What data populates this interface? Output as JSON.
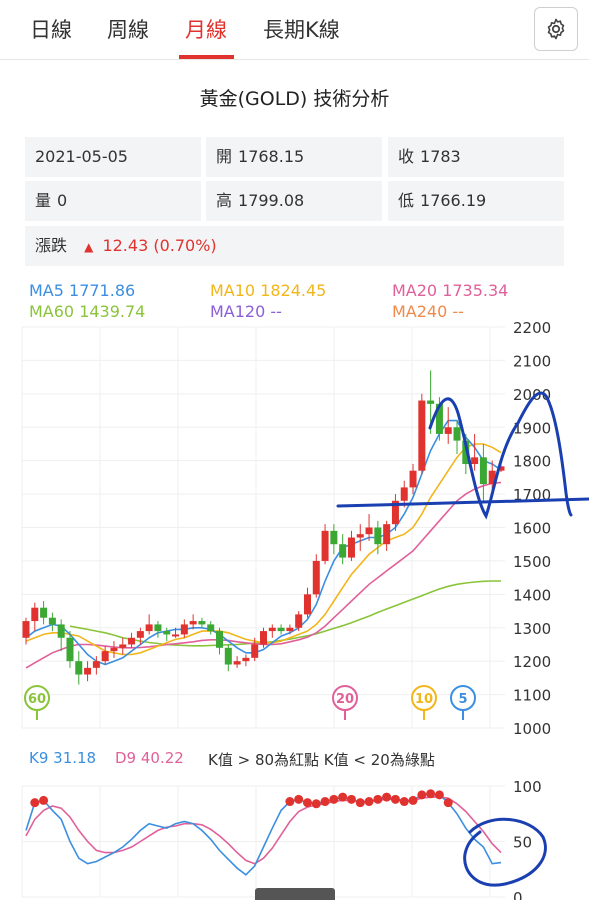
{
  "tabs": [
    "日線",
    "周線",
    "月線",
    "長期K線"
  ],
  "active_tab": 2,
  "title": "黃金(GOLD) 技術分析",
  "info": {
    "date": "2021-05-05",
    "open_label": "開",
    "open": "1768.15",
    "close_label": "收",
    "close": "1783",
    "volume_label": "量",
    "volume": "0",
    "high_label": "高",
    "high": "1799.08",
    "low_label": "低",
    "low": "1766.19",
    "change_label": "漲跌",
    "change": "12.43 (0.70%)"
  },
  "ma_legend": {
    "ma5": "MA5 1771.86",
    "ma10": "MA10 1824.45",
    "ma20": "MA20 1735.34",
    "ma60": "MA60 1439.74",
    "ma120": "MA120 --",
    "ma240": "MA240 --"
  },
  "kd_legend": {
    "k9": "K9 31.18",
    "d9": "D9 40.22",
    "note": "K值 > 80為紅點 K值 < 20為綠點"
  },
  "colors": {
    "up": "#e0332f",
    "down": "#3aa832",
    "ma5": "#3b8fe0",
    "ma10": "#f2b61b",
    "ma20": "#e0609a",
    "ma60": "#8ac43a",
    "ma120": "#8b5fd6",
    "ma240": "#f08a4b",
    "k": "#3b8fe0",
    "d": "#e0609a",
    "ink": "#1a3fb0"
  },
  "chart_data": [
    {
      "type": "candlestick",
      "ylim": [
        1000,
        2200
      ],
      "yticks": [
        "2200",
        "2100",
        "2000",
        "1900",
        "1800",
        "1700",
        "1600",
        "1500",
        "1400",
        "1300",
        "1200",
        "1100",
        "1000"
      ],
      "candles": [
        [
          1270,
          1320,
          1250,
          1330
        ],
        [
          1320,
          1360,
          1290,
          1375
        ],
        [
          1360,
          1330,
          1310,
          1380
        ],
        [
          1330,
          1310,
          1290,
          1345
        ],
        [
          1310,
          1270,
          1230,
          1325
        ],
        [
          1270,
          1200,
          1180,
          1290
        ],
        [
          1200,
          1160,
          1130,
          1230
        ],
        [
          1160,
          1180,
          1140,
          1200
        ],
        [
          1180,
          1200,
          1160,
          1215
        ],
        [
          1200,
          1230,
          1190,
          1245
        ],
        [
          1230,
          1240,
          1210,
          1260
        ],
        [
          1240,
          1250,
          1220,
          1270
        ],
        [
          1250,
          1270,
          1240,
          1285
        ],
        [
          1270,
          1290,
          1250,
          1300
        ],
        [
          1290,
          1310,
          1280,
          1340
        ],
        [
          1310,
          1290,
          1270,
          1320
        ],
        [
          1290,
          1280,
          1260,
          1300
        ],
        [
          1280,
          1280,
          1270,
          1300
        ],
        [
          1280,
          1310,
          1270,
          1325
        ],
        [
          1310,
          1320,
          1295,
          1340
        ],
        [
          1320,
          1310,
          1300,
          1330
        ],
        [
          1310,
          1290,
          1280,
          1320
        ],
        [
          1290,
          1240,
          1220,
          1300
        ],
        [
          1240,
          1190,
          1170,
          1250
        ],
        [
          1190,
          1200,
          1180,
          1215
        ],
        [
          1200,
          1210,
          1185,
          1220
        ],
        [
          1210,
          1250,
          1200,
          1270
        ],
        [
          1250,
          1290,
          1240,
          1300
        ],
        [
          1290,
          1300,
          1270,
          1310
        ],
        [
          1300,
          1290,
          1280,
          1310
        ],
        [
          1290,
          1300,
          1280,
          1310
        ],
        [
          1300,
          1340,
          1290,
          1350
        ],
        [
          1340,
          1400,
          1330,
          1420
        ],
        [
          1400,
          1500,
          1390,
          1520
        ],
        [
          1500,
          1590,
          1490,
          1610
        ],
        [
          1590,
          1550,
          1520,
          1610
        ],
        [
          1550,
          1510,
          1490,
          1580
        ],
        [
          1510,
          1570,
          1500,
          1590
        ],
        [
          1570,
          1580,
          1530,
          1610
        ],
        [
          1580,
          1600,
          1560,
          1640
        ],
        [
          1600,
          1550,
          1520,
          1620
        ],
        [
          1550,
          1610,
          1530,
          1620
        ],
        [
          1610,
          1680,
          1590,
          1700
        ],
        [
          1680,
          1720,
          1660,
          1740
        ],
        [
          1720,
          1770,
          1700,
          1790
        ],
        [
          1770,
          1980,
          1760,
          2000
        ],
        [
          1980,
          1970,
          1880,
          2070
        ],
        [
          1970,
          1880,
          1860,
          1990
        ],
        [
          1880,
          1900,
          1850,
          1960
        ],
        [
          1900,
          1860,
          1820,
          1920
        ],
        [
          1860,
          1790,
          1760,
          1880
        ],
        [
          1790,
          1810,
          1770,
          1880
        ],
        [
          1810,
          1730,
          1680,
          1850
        ],
        [
          1730,
          1770,
          1700,
          1800
        ],
        [
          1770,
          1783,
          1766,
          1799
        ]
      ],
      "ma5": [
        1270,
        1290,
        1300,
        1310,
        1305,
        1280,
        1250,
        1220,
        1200,
        1190,
        1200,
        1210,
        1230,
        1250,
        1270,
        1285,
        1290,
        1295,
        1295,
        1300,
        1300,
        1295,
        1280,
        1260,
        1240,
        1225,
        1225,
        1235,
        1255,
        1275,
        1285,
        1300,
        1325,
        1370,
        1440,
        1500,
        1540,
        1550,
        1560,
        1570,
        1570,
        1580,
        1600,
        1640,
        1690,
        1760,
        1830,
        1880,
        1920,
        1920,
        1870,
        1840,
        1800,
        1790,
        1772
      ],
      "ma10": [
        1260,
        1270,
        1280,
        1285,
        1285,
        1280,
        1275,
        1260,
        1245,
        1230,
        1225,
        1220,
        1220,
        1225,
        1235,
        1245,
        1255,
        1265,
        1270,
        1280,
        1290,
        1290,
        1290,
        1285,
        1275,
        1265,
        1260,
        1255,
        1255,
        1260,
        1270,
        1280,
        1290,
        1310,
        1340,
        1380,
        1420,
        1460,
        1490,
        1520,
        1540,
        1560,
        1570,
        1580,
        1600,
        1640,
        1690,
        1730,
        1770,
        1810,
        1840,
        1850,
        1850,
        1840,
        1824
      ],
      "ma20": [
        1180,
        1195,
        1210,
        1225,
        1235,
        1245,
        1250,
        1250,
        1248,
        1245,
        1242,
        1240,
        1240,
        1241,
        1243,
        1246,
        1250,
        1252,
        1255,
        1258,
        1262,
        1264,
        1264,
        1262,
        1258,
        1255,
        1252,
        1250,
        1250,
        1252,
        1258,
        1264,
        1272,
        1285,
        1305,
        1330,
        1355,
        1380,
        1405,
        1430,
        1450,
        1470,
        1490,
        1510,
        1530,
        1560,
        1590,
        1620,
        1650,
        1680,
        1700,
        1715,
        1725,
        1732,
        1735
      ],
      "ma60": [
        null,
        null,
        null,
        null,
        null,
        1305,
        1300,
        1295,
        1290,
        1285,
        1278,
        1270,
        1265,
        1260,
        1256,
        1253,
        1250,
        1248,
        1247,
        1246,
        1246,
        1247,
        1248,
        1249,
        1250,
        1252,
        1254,
        1256,
        1258,
        1262,
        1266,
        1271,
        1276,
        1282,
        1290,
        1298,
        1306,
        1315,
        1325,
        1335,
        1346,
        1356,
        1366,
        1376,
        1386,
        1396,
        1406,
        1416,
        1424,
        1430,
        1434,
        1437,
        1439,
        1440,
        1440
      ]
    },
    {
      "type": "line",
      "ylim": [
        0,
        100
      ],
      "yticks": [
        "100",
        "50",
        "0"
      ],
      "k": [
        60,
        85,
        87,
        78,
        70,
        50,
        35,
        30,
        32,
        36,
        40,
        45,
        52,
        60,
        66,
        64,
        62,
        66,
        68,
        66,
        60,
        52,
        42,
        34,
        26,
        20,
        28,
        45,
        62,
        78,
        86,
        88,
        85,
        84,
        86,
        88,
        90,
        88,
        85,
        86,
        88,
        90,
        88,
        86,
        87,
        92,
        93,
        92,
        85,
        75,
        62,
        52,
        45,
        30,
        31
      ],
      "d": [
        55,
        70,
        78,
        82,
        80,
        72,
        60,
        50,
        42,
        40,
        40,
        42,
        45,
        50,
        55,
        60,
        63,
        64,
        66,
        66,
        65,
        61,
        55,
        48,
        40,
        33,
        30,
        35,
        44,
        56,
        68,
        77,
        81,
        83,
        84,
        86,
        87,
        87,
        86,
        86,
        87,
        88,
        88,
        87,
        87,
        89,
        90,
        90,
        89,
        84,
        77,
        68,
        59,
        48,
        40
      ]
    }
  ],
  "badges": [
    "60",
    "20",
    "10",
    "5"
  ]
}
